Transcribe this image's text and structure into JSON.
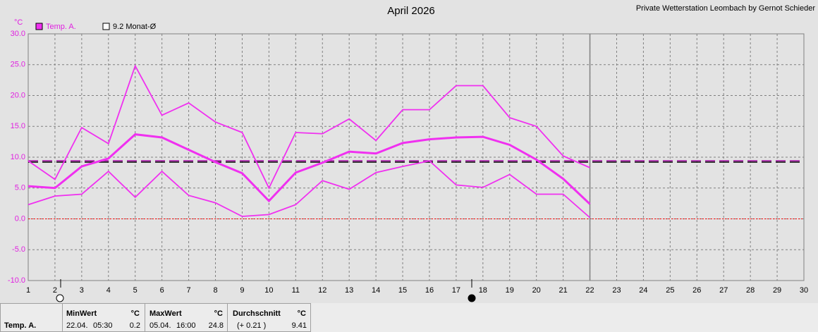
{
  "chart_data": {
    "type": "line",
    "title": "April 2026",
    "subtitle": "Private Wetterstation Leombach by Gernot Schieder",
    "y_unit": "°C",
    "x": [
      1,
      2,
      3,
      4,
      5,
      6,
      7,
      8,
      9,
      10,
      11,
      12,
      13,
      14,
      15,
      16,
      17,
      18,
      19,
      20,
      21,
      22,
      23,
      24,
      25,
      26,
      27,
      28,
      29,
      30
    ],
    "series": [
      {
        "name": "Temp. A.",
        "color": "#f030f0",
        "max": [
          9.4,
          6.4,
          14.8,
          12.2,
          24.8,
          16.8,
          18.8,
          15.7,
          14.0,
          5.0,
          14.0,
          13.8,
          16.2,
          12.7,
          17.7,
          17.7,
          21.6,
          21.6,
          16.4,
          15.0,
          10.2,
          8.3,
          null,
          null,
          null,
          null,
          null,
          null,
          null,
          null
        ],
        "mean": [
          5.3,
          5.0,
          8.5,
          9.8,
          13.7,
          13.2,
          11.2,
          9.2,
          7.4,
          2.9,
          7.5,
          9.1,
          10.9,
          10.6,
          12.3,
          12.9,
          13.2,
          13.3,
          12.0,
          9.6,
          6.5,
          2.4,
          null,
          null,
          null,
          null,
          null,
          null,
          null,
          null
        ],
        "min": [
          2.3,
          3.7,
          4.0,
          7.7,
          3.5,
          7.7,
          3.8,
          2.6,
          0.4,
          0.7,
          2.3,
          6.2,
          4.8,
          7.5,
          8.5,
          9.4,
          5.5,
          5.1,
          7.2,
          4.0,
          4.0,
          0.2,
          null,
          null,
          null,
          null,
          null,
          null,
          null,
          null
        ]
      }
    ],
    "reference_lines": [
      {
        "value": 9.2,
        "label": "9.2 Monat-Ø",
        "color": "#000000"
      }
    ],
    "mean_line_color": "#a000a0",
    "zero_line_color": "#ff0000",
    "current_day": 22,
    "xlim": [
      1,
      30
    ],
    "xticks": [
      1,
      2,
      3,
      4,
      5,
      6,
      7,
      8,
      9,
      10,
      11,
      12,
      13,
      14,
      15,
      16,
      17,
      18,
      19,
      20,
      21,
      22,
      23,
      24,
      25,
      26,
      27,
      28,
      29,
      30
    ],
    "ylim": [
      -10,
      30
    ],
    "yticks": [
      {
        "value": -10,
        "label": "-10.0"
      },
      {
        "value": -5,
        "label": "-5.0"
      },
      {
        "value": 0,
        "label": "0.0"
      },
      {
        "value": 5,
        "label": "5.0"
      },
      {
        "value": 10,
        "label": "10.0"
      },
      {
        "value": 15,
        "label": "15.0"
      },
      {
        "value": 20,
        "label": "20.0"
      },
      {
        "value": 25,
        "label": "25.0"
      },
      {
        "value": 30,
        "label": "30.0"
      }
    ],
    "grid": true
  },
  "stats_table": {
    "min": {
      "header": "MinWert",
      "unit": "°C",
      "date": "22.04.",
      "time": "05:30",
      "value": 0.2
    },
    "max": {
      "header": "MaxWert",
      "unit": "°C",
      "date": "05.04.",
      "time": "16:00",
      "value": 24.8
    },
    "avg": {
      "header": "Durchschnitt",
      "unit": "°C",
      "diff": "(+ 0.21 )",
      "value": 9.41
    }
  }
}
